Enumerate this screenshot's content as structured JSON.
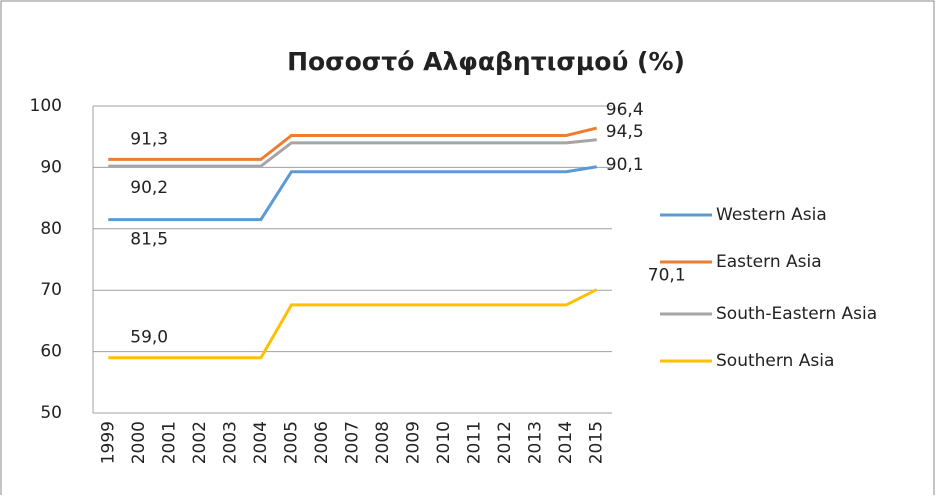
{
  "chart_data": {
    "type": "line",
    "title": "Ποσοστό Αλφαβητισμού (%)",
    "categories": [
      "1999",
      "2000",
      "2001",
      "2002",
      "2003",
      "2004",
      "2005",
      "2006",
      "2007",
      "2008",
      "2009",
      "2010",
      "2011",
      "2012",
      "2013",
      "2014",
      "2015"
    ],
    "series": [
      {
        "name": "Western Asia",
        "color": "#5b9bd5",
        "values": [
          81.5,
          81.5,
          81.5,
          81.5,
          81.5,
          81.5,
          89.3,
          89.3,
          89.3,
          89.3,
          89.3,
          89.3,
          89.3,
          89.3,
          89.3,
          89.3,
          90.1
        ],
        "value_labels": [
          "81,5",
          null,
          null,
          null,
          null,
          null,
          null,
          null,
          null,
          null,
          null,
          null,
          null,
          null,
          null,
          null,
          "90,1"
        ]
      },
      {
        "name": "Eastern Asia",
        "color": "#ed7d31",
        "values": [
          91.3,
          91.3,
          91.3,
          91.3,
          91.3,
          91.3,
          95.2,
          95.2,
          95.2,
          95.2,
          95.2,
          95.2,
          95.2,
          95.2,
          95.2,
          95.2,
          96.4
        ],
        "value_labels": [
          "91,3",
          null,
          null,
          null,
          null,
          null,
          null,
          null,
          null,
          null,
          null,
          null,
          null,
          null,
          null,
          null,
          "96,4"
        ]
      },
      {
        "name": "South-Eastern Asia",
        "color": "#a5a5a5",
        "values": [
          90.2,
          90.2,
          90.2,
          90.2,
          90.2,
          90.2,
          94.0,
          94.0,
          94.0,
          94.0,
          94.0,
          94.0,
          94.0,
          94.0,
          94.0,
          94.0,
          94.5
        ],
        "value_labels": [
          "90,2",
          null,
          null,
          null,
          null,
          null,
          null,
          null,
          null,
          null,
          null,
          null,
          null,
          null,
          null,
          null,
          "94,5"
        ]
      },
      {
        "name": "Southern Asia",
        "color": "#ffc000",
        "values": [
          59.0,
          59.0,
          59.0,
          59.0,
          59.0,
          59.0,
          67.6,
          67.6,
          67.6,
          67.6,
          67.6,
          67.6,
          67.6,
          67.6,
          67.6,
          67.6,
          70.1
        ],
        "value_labels": [
          "59,0",
          null,
          null,
          null,
          null,
          null,
          null,
          null,
          null,
          null,
          null,
          null,
          null,
          null,
          null,
          null,
          "70,1"
        ]
      }
    ],
    "ylim": [
      50,
      100
    ],
    "yticks": [
      50,
      60,
      70,
      80,
      90,
      100
    ],
    "grid": true,
    "legend": "right"
  }
}
